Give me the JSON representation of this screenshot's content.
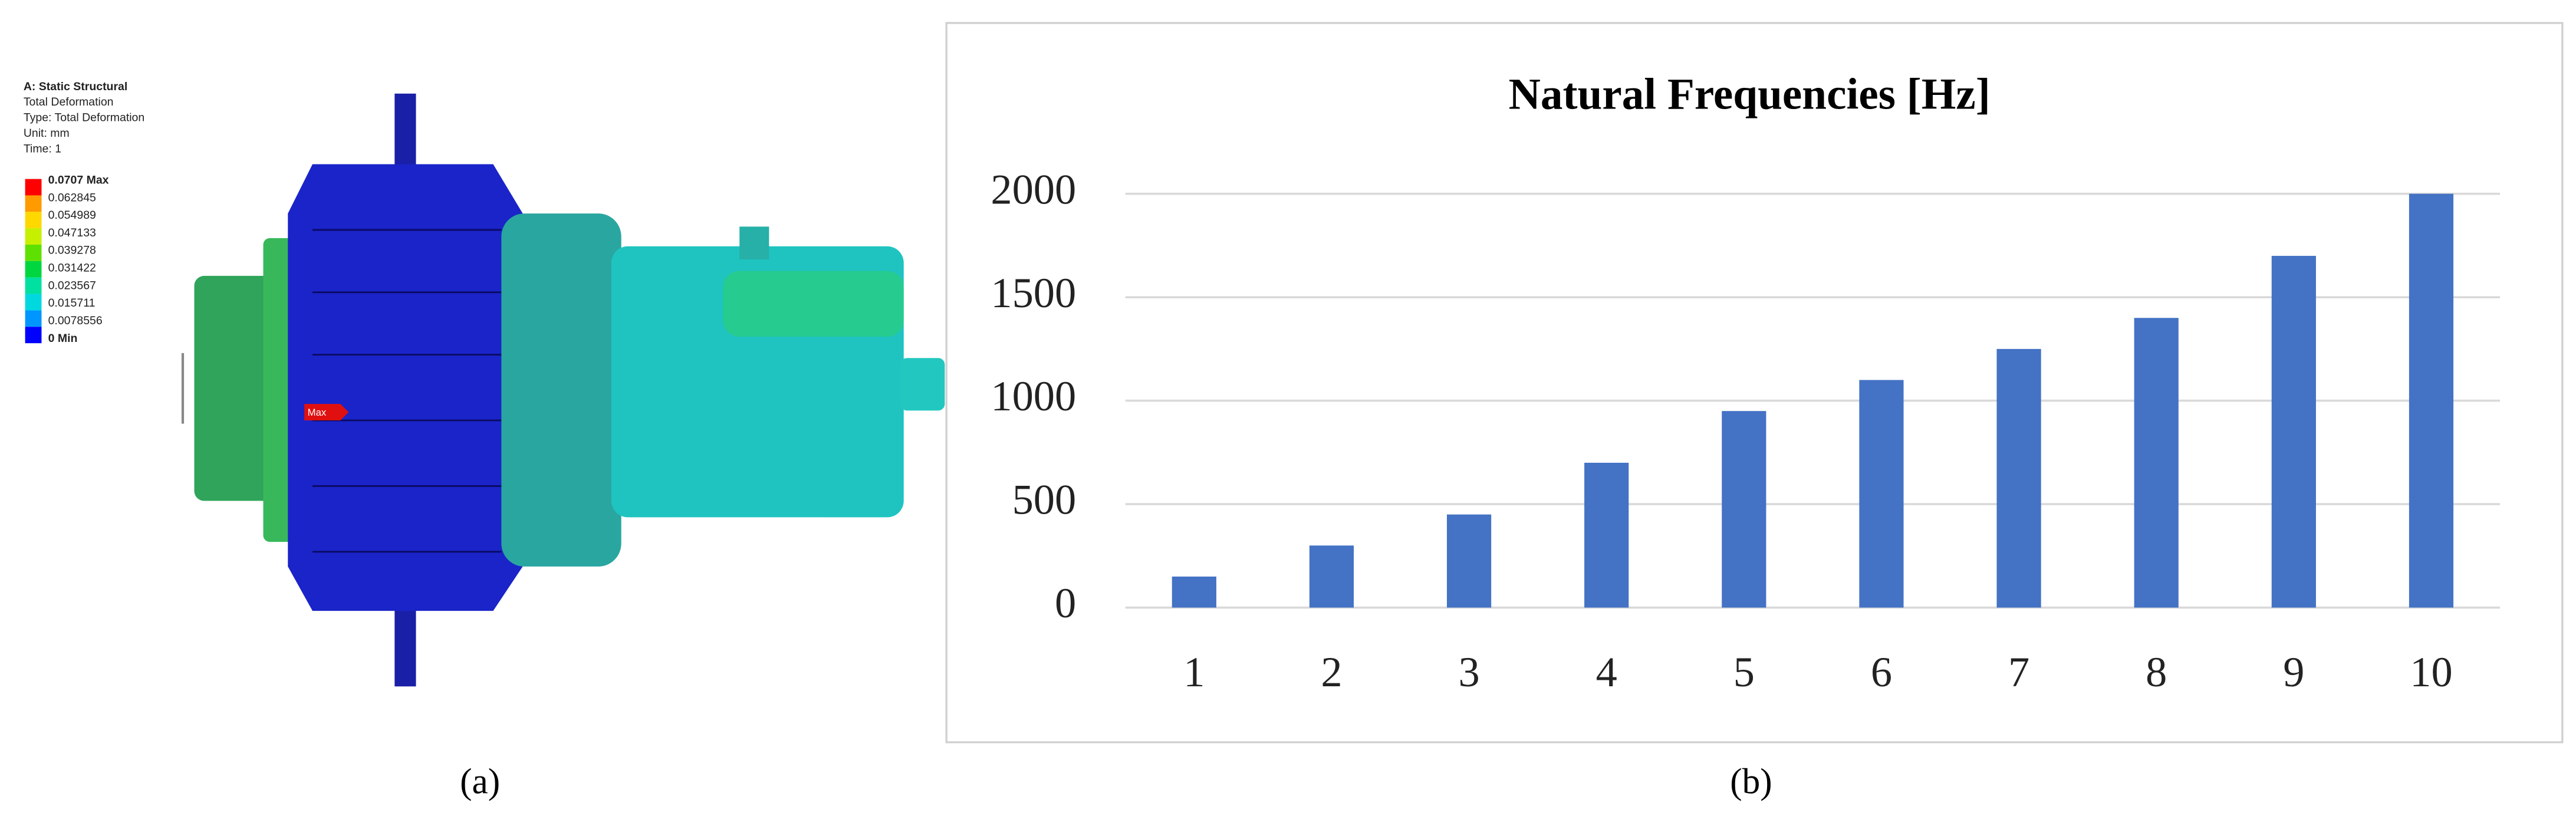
{
  "panel_a": {
    "header": [
      "A: Static Structural",
      "Total Deformation",
      "Type: Total Deformation",
      "Unit: mm",
      "Time: 1"
    ],
    "legend": [
      "0.0707 Max",
      "0.062845",
      "0.054989",
      "0.047133",
      "0.039278",
      "0.031422",
      "0.023567",
      "0.015711",
      "0.0078556",
      "0 Min"
    ],
    "probe": "Max",
    "caption": "(a)"
  },
  "chart_data": {
    "type": "bar",
    "title": "Natural Frequencies [Hz]",
    "categories": [
      "1",
      "2",
      "3",
      "4",
      "5",
      "6",
      "7",
      "8",
      "9",
      "10"
    ],
    "values": [
      150,
      300,
      450,
      700,
      950,
      1100,
      1250,
      1400,
      1700,
      2000
    ],
    "color": "#4472c4",
    "ylim": [
      0,
      2000
    ],
    "yticks": [
      0,
      500,
      1000,
      1500,
      2000
    ],
    "grid": true
  },
  "panel_b": {
    "caption": "(b)"
  }
}
